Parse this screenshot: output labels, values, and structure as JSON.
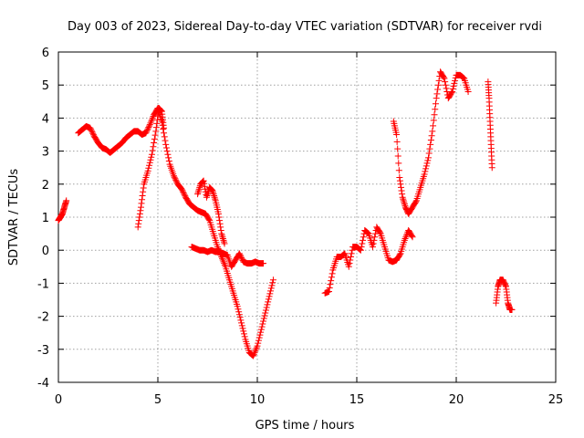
{
  "chart_data": {
    "type": "scatter",
    "title": "Day 003 of 2023, Sidereal Day-to-day VTEC variation (SDTVAR) for receiver rvdi",
    "xlabel": "GPS time / hours",
    "ylabel": "SDTVAR / TECUs",
    "xlim": [
      0,
      25
    ],
    "ylim": [
      -4,
      6
    ],
    "xticks": [
      "0",
      "5",
      "10",
      "15",
      "20",
      "25"
    ],
    "yticks": [
      "-4",
      "-3",
      "-2",
      "-1",
      "0",
      "1",
      "2",
      "3",
      "4",
      "5",
      "6"
    ],
    "grid": true,
    "marker": "+",
    "color": "#ff0000",
    "series": [
      {
        "name": "s1",
        "x": [
          0.0,
          0.1,
          0.2,
          0.3,
          0.4
        ],
        "y": [
          0.9,
          1.0,
          1.1,
          1.3,
          1.5
        ]
      },
      {
        "name": "s2",
        "x": [
          1.0,
          1.2,
          1.4,
          1.6,
          1.8,
          2.0,
          2.2,
          2.4,
          2.6,
          2.8,
          3.0,
          3.2,
          3.4,
          3.6,
          3.8,
          4.0,
          4.2,
          4.4,
          4.6,
          4.8,
          5.0,
          5.2,
          5.4,
          5.6,
          5.8,
          6.0,
          6.2,
          6.4,
          6.6,
          6.8,
          7.0,
          7.2,
          7.4,
          7.6,
          7.8,
          8.0,
          8.2,
          8.4,
          8.6,
          8.8,
          9.0,
          9.2,
          9.4,
          9.6,
          9.8,
          10.0,
          10.2,
          10.4,
          10.6,
          10.8
        ],
        "y": [
          3.55,
          3.65,
          3.75,
          3.7,
          3.45,
          3.25,
          3.1,
          3.05,
          2.95,
          3.05,
          3.15,
          3.25,
          3.4,
          3.5,
          3.6,
          3.6,
          3.5,
          3.55,
          3.8,
          4.1,
          4.3,
          3.9,
          3.2,
          2.6,
          2.25,
          2.0,
          1.85,
          1.6,
          1.4,
          1.3,
          1.2,
          1.15,
          1.1,
          0.9,
          0.5,
          0.1,
          -0.2,
          -0.5,
          -0.9,
          -1.3,
          -1.7,
          -2.2,
          -2.7,
          -3.1,
          -3.2,
          -2.9,
          -2.4,
          -1.9,
          -1.4,
          -0.9
        ]
      },
      {
        "name": "s3",
        "x": [
          4.0,
          4.15,
          4.3,
          4.5,
          4.7,
          4.9,
          5.05,
          5.2,
          5.3
        ],
        "y": [
          0.7,
          1.3,
          2.0,
          2.4,
          2.9,
          3.6,
          4.3,
          4.2,
          3.7
        ]
      },
      {
        "name": "s4",
        "x": [
          6.7,
          6.9,
          7.1,
          7.3,
          7.5,
          7.7,
          7.9,
          8.1,
          8.3,
          8.5,
          8.7,
          8.9,
          9.1,
          9.3,
          9.5,
          9.7,
          9.9,
          10.1,
          10.3
        ],
        "y": [
          0.1,
          0.05,
          0.0,
          0.0,
          -0.05,
          0.0,
          -0.05,
          -0.05,
          -0.1,
          -0.15,
          -0.5,
          -0.3,
          -0.1,
          -0.35,
          -0.4,
          -0.4,
          -0.35,
          -0.4,
          -0.4
        ]
      },
      {
        "name": "s5",
        "x": [
          7.0,
          7.15,
          7.3,
          7.45,
          7.6,
          7.75,
          7.9,
          8.05,
          8.2,
          8.35
        ],
        "y": [
          1.7,
          2.0,
          2.1,
          1.6,
          1.9,
          1.8,
          1.5,
          1.1,
          0.5,
          0.2
        ]
      },
      {
        "name": "s6",
        "x": [
          13.4,
          13.6,
          13.8,
          14.0,
          14.2,
          14.4,
          14.6,
          14.8,
          15.0,
          15.2,
          15.4,
          15.6,
          15.8,
          16.0,
          16.2,
          16.4,
          16.6,
          16.8,
          17.0,
          17.2,
          17.4,
          17.6,
          17.8
        ],
        "y": [
          -1.3,
          -1.25,
          -0.6,
          -0.2,
          -0.2,
          -0.1,
          -0.5,
          0.1,
          0.1,
          0.0,
          0.6,
          0.5,
          0.1,
          0.7,
          0.5,
          0.1,
          -0.3,
          -0.35,
          -0.3,
          -0.1,
          0.3,
          0.6,
          0.4
        ]
      },
      {
        "name": "s7",
        "x": [
          16.85,
          17.0,
          17.15,
          17.3,
          17.45,
          17.6,
          17.8,
          18.0,
          18.2,
          18.4,
          18.6,
          18.8,
          19.0,
          19.2,
          19.4,
          19.6,
          19.8,
          20.0,
          20.2,
          20.4,
          20.6
        ],
        "y": [
          3.9,
          3.5,
          2.2,
          1.6,
          1.3,
          1.1,
          1.3,
          1.5,
          1.9,
          2.3,
          2.8,
          3.6,
          4.6,
          5.4,
          5.2,
          4.6,
          4.8,
          5.3,
          5.3,
          5.2,
          4.8
        ]
      },
      {
        "name": "s8",
        "x": [
          21.6,
          21.65,
          21.7,
          21.75,
          21.8
        ],
        "y": [
          5.1,
          4.6,
          3.9,
          3.2,
          2.5
        ]
      },
      {
        "name": "s9",
        "x": [
          22.0,
          22.1,
          22.2,
          22.35,
          22.5,
          22.6,
          22.7,
          22.8
        ],
        "y": [
          -1.6,
          -1.1,
          -0.9,
          -0.9,
          -1.1,
          -1.6,
          -1.8,
          -1.8
        ]
      }
    ]
  }
}
